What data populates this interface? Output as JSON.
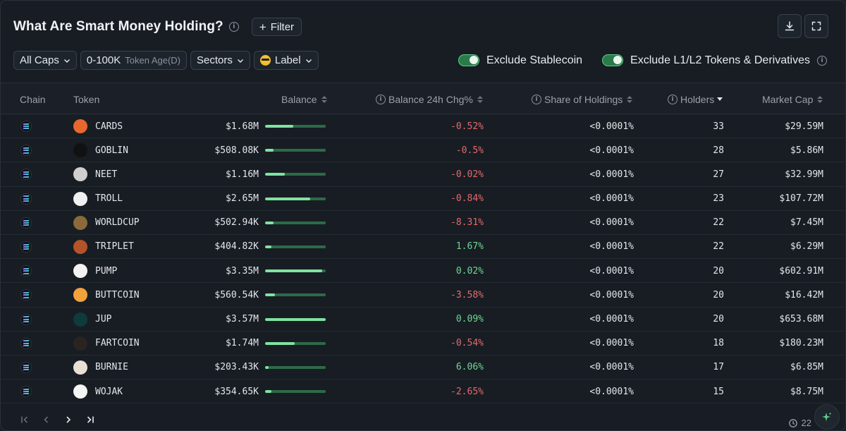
{
  "header": {
    "title": "What Are Smart Money Holding?",
    "filter_label": "Filter"
  },
  "filters": {
    "caps": "All Caps",
    "age_value": "0-100K",
    "age_label": "Token Age(D)",
    "sectors": "Sectors",
    "label": "Label"
  },
  "toggles": {
    "stablecoin": "Exclude Stablecoin",
    "l1l2": "Exclude L1/L2 Tokens & Derivatives"
  },
  "columns": {
    "chain": "Chain",
    "token": "Token",
    "balance": "Balance",
    "balance_chg": "Balance 24h Chg%",
    "share": "Share of Holdings",
    "holders": "Holders",
    "mcap": "Market Cap"
  },
  "rows": [
    {
      "token": "CARDS",
      "balance": "$1.68M",
      "bar": 0.47,
      "chg": "-0.52%",
      "share": "<0.0001%",
      "holders": "33",
      "mcap": "$29.59M"
    },
    {
      "token": "GOBLIN",
      "balance": "$508.08K",
      "bar": 0.14,
      "chg": "-0.5%",
      "share": "<0.0001%",
      "holders": "28",
      "mcap": "$5.86M"
    },
    {
      "token": "NEET",
      "balance": "$1.16M",
      "bar": 0.32,
      "chg": "-0.02%",
      "share": "<0.0001%",
      "holders": "27",
      "mcap": "$32.99M"
    },
    {
      "token": "TROLL",
      "balance": "$2.65M",
      "bar": 0.74,
      "chg": "-0.84%",
      "share": "<0.0001%",
      "holders": "23",
      "mcap": "$107.72M"
    },
    {
      "token": "WORLDCUP",
      "balance": "$502.94K",
      "bar": 0.14,
      "chg": "-8.31%",
      "share": "<0.0001%",
      "holders": "22",
      "mcap": "$7.45M"
    },
    {
      "token": "TRIPLET",
      "balance": "$404.82K",
      "bar": 0.11,
      "chg": "1.67%",
      "share": "<0.0001%",
      "holders": "22",
      "mcap": "$6.29M"
    },
    {
      "token": "PUMP",
      "balance": "$3.35M",
      "bar": 0.94,
      "chg": "0.02%",
      "share": "<0.0001%",
      "holders": "20",
      "mcap": "$602.91M"
    },
    {
      "token": "BUTTCOIN",
      "balance": "$560.54K",
      "bar": 0.16,
      "chg": "-3.58%",
      "share": "<0.0001%",
      "holders": "20",
      "mcap": "$16.42M"
    },
    {
      "token": "JUP",
      "balance": "$3.57M",
      "bar": 1.0,
      "chg": "0.09%",
      "share": "<0.0001%",
      "holders": "20",
      "mcap": "$653.68M"
    },
    {
      "token": "FARTCOIN",
      "balance": "$1.74M",
      "bar": 0.49,
      "chg": "-0.54%",
      "share": "<0.0001%",
      "holders": "18",
      "mcap": "$180.23M"
    },
    {
      "token": "BURNIE",
      "balance": "$203.43K",
      "bar": 0.06,
      "chg": "6.06%",
      "share": "<0.0001%",
      "holders": "17",
      "mcap": "$6.85M"
    },
    {
      "token": "WOJAK",
      "balance": "$354.65K",
      "bar": 0.1,
      "chg": "-2.65%",
      "share": "<0.0001%",
      "holders": "15",
      "mcap": "$8.75M"
    }
  ],
  "token_icon_colors": [
    "#e8672f",
    "#111111",
    "#cfcfcf",
    "#f0f0f0",
    "#8a6a3a",
    "#b4532a",
    "#f2f2f2",
    "#f2a23a",
    "#0f3b3a",
    "#2a2420",
    "#e9e0d4",
    "#f4f4f4"
  ],
  "footer": {
    "updated": "22"
  },
  "colors": {
    "negative": "#e46a6a",
    "positive": "#6fd892",
    "bar_fill": "#7fe3a0",
    "bar_track": "#2e6a48",
    "toggle_on": "#5fd089"
  }
}
